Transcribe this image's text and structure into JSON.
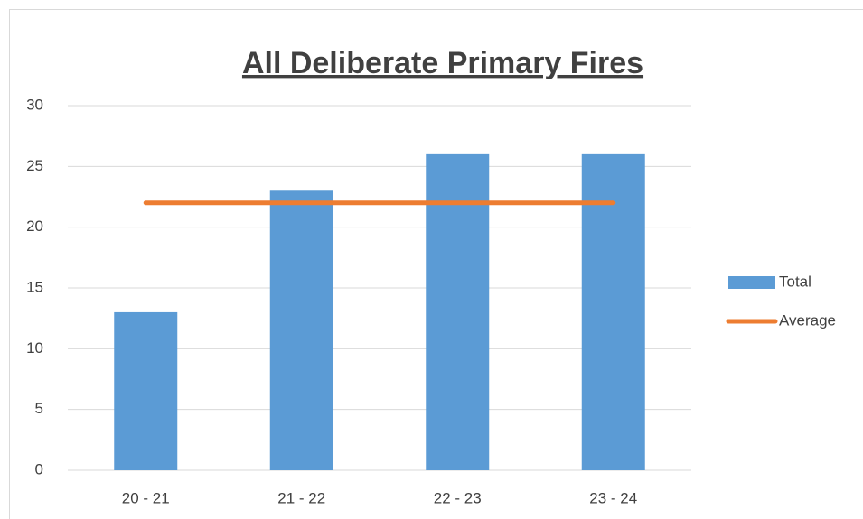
{
  "chart_data": {
    "type": "bar",
    "title": "All Deliberate Primary Fires",
    "categories": [
      "20 - 21",
      "21 - 22",
      "22 - 23",
      "23 - 24"
    ],
    "series": [
      {
        "name": "Total",
        "type": "bar",
        "color": "#5b9bd5",
        "values": [
          13,
          23,
          26,
          26
        ]
      },
      {
        "name": "Average",
        "type": "line",
        "color": "#ed7d31",
        "values": [
          22,
          22,
          22,
          22
        ]
      }
    ],
    "ylim": [
      0,
      30
    ],
    "yticks": [
      0,
      5,
      10,
      15,
      20,
      25,
      30
    ],
    "grid": true,
    "legend": "right"
  }
}
